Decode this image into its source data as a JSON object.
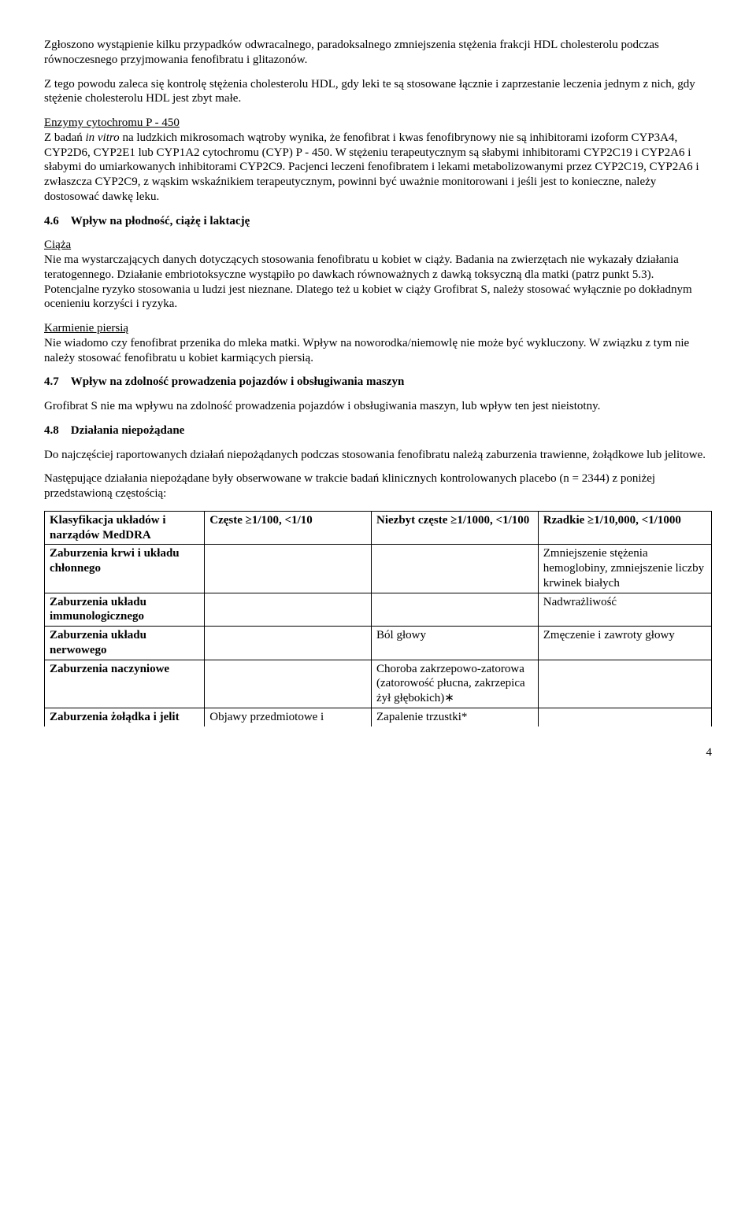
{
  "para_intro_1": "Zgłoszono wystąpienie kilku przypadków odwracalnego, paradoksalnego zmniejszenia stężenia frakcji HDL cholesterolu podczas równoczesnego przyjmowania fenofibratu i glitazonów.",
  "para_intro_2": "Z tego powodu zaleca się kontrolę stężenia cholesterolu HDL, gdy leki te są stosowane łącznie i zaprzestanie leczenia jednym z nich, gdy stężenie cholesterolu HDL jest zbyt małe.",
  "enz_head": "Enzymy cytochromu P - 450",
  "enz_body_a": "Z badań ",
  "enz_body_it": "in vitro",
  "enz_body_b": " na ludzkich mikrosomach wątroby wynika, że fenofibrat i kwas fenofibrynowy nie są inhibitorami izoform CYP3A4, CYP2D6, CYP2E1 lub CYP1A2 cytochromu (CYP) P - 450. W stężeniu terapeutycznym są słabymi inhibitorami CYP2C19 i CYP2A6 i słabymi do umiarkowanych inhibitorami CYP2C9. Pacjenci leczeni fenofibratem i lekami metabolizowanymi przez CYP2C19, CYP2A6 i zwłaszcza CYP2C9, z wąskim wskaźnikiem terapeutycznym, powinni być uważnie monitorowani i jeśli jest to konieczne, należy dostosować dawkę leku.",
  "s46_num": "4.6",
  "s46_title": "Wpływ na płodność, ciążę i laktację",
  "ciaza_head": "Ciąża",
  "ciaza_body": "Nie ma wystarczających danych dotyczących stosowania fenofibratu u kobiet w ciąży. Badania na zwierzętach nie wykazały działania teratogennego. Działanie embriotoksyczne wystąpiło po dawkach równoważnych z dawką toksyczną dla matki (patrz punkt 5.3). Potencjalne ryzyko stosowania u ludzi jest nieznane. Dlatego też u kobiet w ciąży Grofibrat S, należy stosować wyłącznie po dokładnym ocenieniu korzyści i ryzyka.",
  "karm_head": "Karmienie piersią",
  "karm_body": "Nie wiadomo czy fenofibrat przenika do mleka matki. Wpływ na noworodka/niemowlę nie może być wykluczony. W związku z tym nie należy stosować fenofibratu u kobiet karmiących piersią.",
  "s47_num": "4.7",
  "s47_title": "Wpływ na zdolność prowadzenia pojazdów i obsługiwania maszyn",
  "s47_body": "Grofibrat S nie ma wpływu na zdolność prowadzenia pojazdów i obsługiwania maszyn, lub wpływ ten jest nieistotny.",
  "s48_num": "4.8",
  "s48_title": "Działania niepożądane",
  "s48_p1": "Do najczęściej raportowanych działań niepożądanych podczas stosowania fenofibratu należą zaburzenia trawienne, żołądkowe lub jelitowe.",
  "s48_p2": "Następujące działania niepożądane były obserwowane w trakcie badań klinicznych kontrolowanych placebo (n = 2344) z poniżej przedstawioną częstością:",
  "table": {
    "header": [
      "Klasyfikacja układów i narządów MedDRA",
      "Częste ≥1/100, <1/10",
      "Niezbyt częste ≥1/1000, <1/100",
      "Rzadkie ≥1/10,000, <1/1000"
    ],
    "rows": [
      [
        "Zaburzenia krwi i układu chłonnego",
        "",
        "",
        "Zmniejszenie stężenia hemoglobiny, zmniejszenie liczby krwinek białych"
      ],
      [
        "Zaburzenia układu immunologicznego",
        "",
        "",
        "Nadwrażliwość"
      ],
      [
        "Zaburzenia układu nerwowego",
        "",
        "Ból głowy",
        "Zmęczenie i zawroty głowy"
      ],
      [
        "Zaburzenia naczyniowe",
        "",
        "Choroba zakrzepowo-zatorowa (zatorowość płucna, zakrzepica żył głębokich)∗",
        ""
      ],
      [
        "Zaburzenia żołądka i jelit",
        "Objawy przedmiotowe i",
        "Zapalenie trzustki*",
        ""
      ]
    ]
  },
  "page_number": "4"
}
